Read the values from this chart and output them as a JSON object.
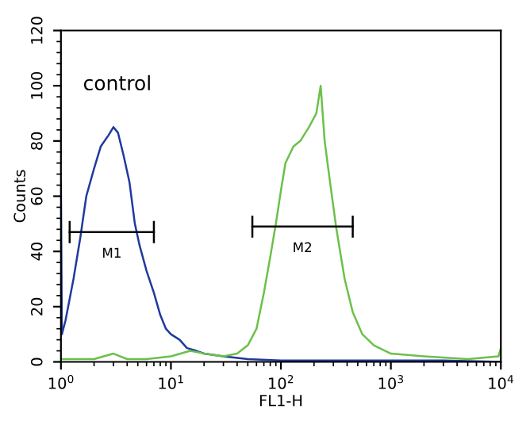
{
  "chart_data": {
    "type": "line",
    "xlabel": "FL1-H",
    "ylabel": "Counts",
    "log": "x",
    "xlim": [
      1,
      10000
    ],
    "xticks": [
      {
        "value": 1,
        "label": "10$^{0}$"
      },
      {
        "value": 10,
        "label": "10$^{1}$"
      },
      {
        "value": 100,
        "label": "10$^{2}$"
      },
      {
        "value": 1000,
        "label": "10$^{3}$"
      },
      {
        "value": 10000,
        "label": "10$^{4}$"
      }
    ],
    "ylim": [
      0,
      120
    ],
    "yticks": [
      0,
      20,
      40,
      60,
      80,
      100,
      120
    ],
    "grid": false,
    "legend": false,
    "annotations": [
      "control",
      {
        "text": "M1",
        "x": 2.9,
        "y": 47
      },
      {
        "text": "M2",
        "x": 157,
        "y": 49
      }
    ],
    "series": [
      {
        "color": "#1f3a9e",
        "x": [
          1.0,
          1.02,
          1.1,
          1.3,
          1.5,
          1.7,
          2.0,
          2.3,
          2.7,
          3.0,
          3.3,
          3.7,
          4.2,
          4.7,
          5.2,
          6,
          7,
          8,
          9,
          10,
          12,
          14,
          17,
          20,
          30,
          50,
          100,
          200,
          1000,
          3000,
          10000
        ],
        "values": [
          65,
          10,
          15,
          30,
          45,
          60,
          70,
          78,
          82,
          85,
          83,
          75,
          65,
          50,
          42,
          33,
          25,
          17,
          12,
          10,
          8,
          5,
          4,
          3,
          2,
          1,
          0.5,
          0.5,
          0.5,
          0.5,
          0
        ]
      },
      {
        "color": "#6cc04a",
        "x": [
          1,
          2,
          3,
          4,
          6,
          10,
          15,
          20,
          30,
          40,
          50,
          60,
          70,
          80,
          90,
          100,
          110,
          130,
          150,
          180,
          210,
          230,
          250,
          280,
          320,
          380,
          450,
          550,
          700,
          1000,
          2000,
          5000,
          9500,
          10000
        ],
        "values": [
          1,
          1,
          3,
          1,
          1,
          2,
          4,
          3,
          2,
          3,
          6,
          12,
          25,
          38,
          50,
          62,
          72,
          78,
          80,
          85,
          90,
          100,
          80,
          65,
          48,
          30,
          18,
          10,
          6,
          3,
          2,
          1,
          2,
          5
        ]
      },
      {
        "color": "#000000",
        "x": [
          1.2,
          7
        ],
        "values": [
          47,
          47
        ],
        "errors": [
          4,
          4
        ]
      },
      {
        "color": "#000000",
        "x": [
          55,
          450
        ],
        "values": [
          49,
          49
        ],
        "errors": [
          4,
          4
        ]
      }
    ]
  }
}
